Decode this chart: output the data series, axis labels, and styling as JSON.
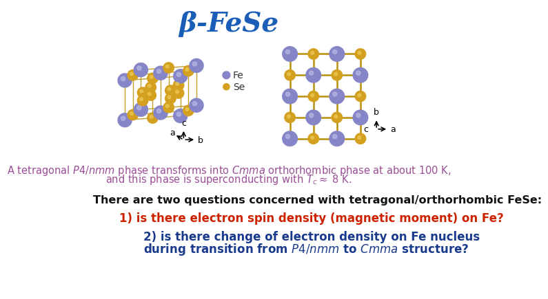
{
  "title": "β-FeSe",
  "title_color": "#1a5eb8",
  "title_fontsize": 28,
  "bg_color": "#ffffff",
  "description_color": "#9b4f96",
  "description_fontsize": 10.5,
  "desc_line1": "A tetragonal $P4/nmm$ phase transforms into $Cmma$ orthorhombic phase at about 100 K,",
  "desc_line2": "and this phase is superconducting with $T_c \\approx$ 8 K.",
  "question_intro": "There are two questions concerned with tetragonal/orthorhombic FeSe:",
  "question_intro_color": "#111111",
  "question_intro_fontsize": 11.5,
  "q1": "1) is there electron spin density (magnetic moment) on Fe?",
  "q1_color": "#cc2200",
  "q1_fontsize": 12,
  "q2_line1": "2) is there change of electron density on Fe nucleus",
  "q2_line2": "during transition from $P4/nmm$ to $Cmma$ structure?",
  "q2_color": "#1a3a8c",
  "q2_fontsize": 12,
  "fe_color": "#8585c8",
  "se_color": "#d4a020",
  "bond_color": "#b8900a"
}
